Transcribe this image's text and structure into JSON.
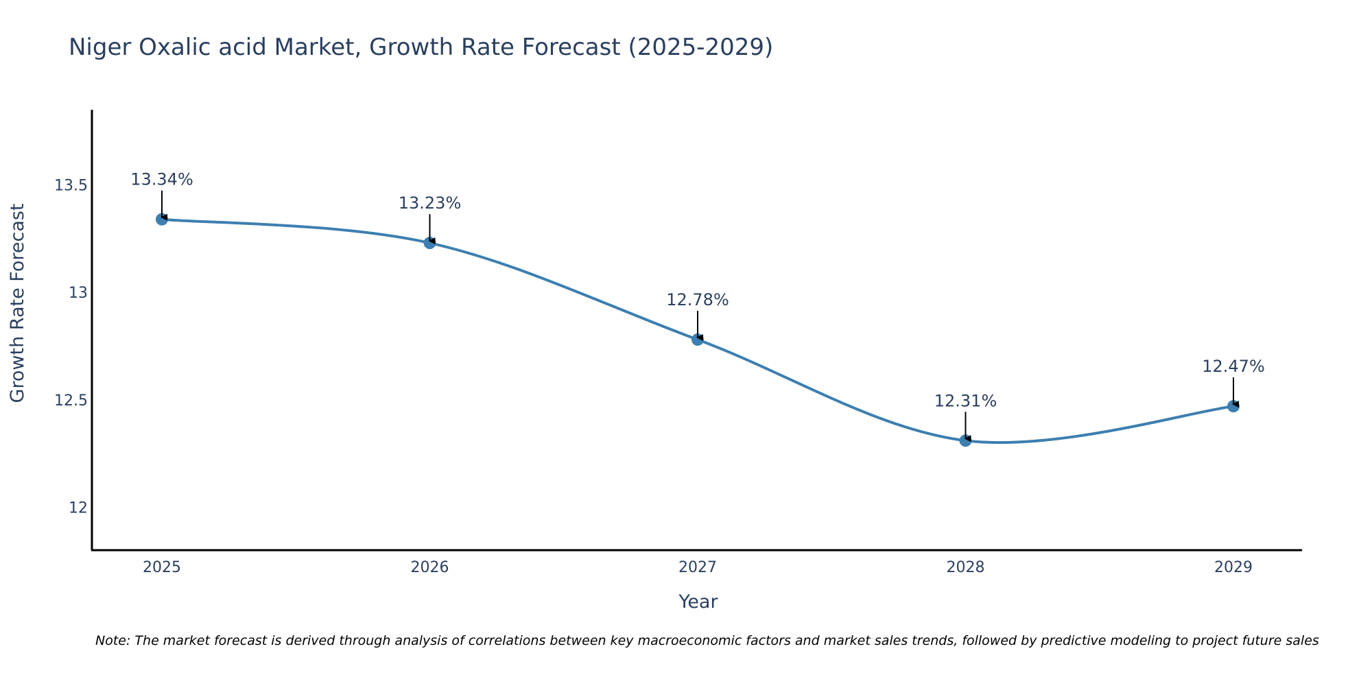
{
  "chart_data": {
    "type": "line",
    "title": "Niger Oxalic acid Market, Growth Rate Forecast (2025-2029)",
    "xlabel": "Year",
    "ylabel": "Growth Rate Forecast",
    "categories": [
      "2025",
      "2026",
      "2027",
      "2028",
      "2029"
    ],
    "values": [
      13.34,
      13.23,
      12.78,
      12.31,
      12.47
    ],
    "data_labels": [
      "13.34%",
      "13.23%",
      "12.78%",
      "12.31%",
      "12.47%"
    ],
    "yticks": [
      12,
      12.5,
      13,
      13.5
    ],
    "ytick_labels": [
      "12",
      "12.5",
      "13",
      "13.5"
    ],
    "ylim": [
      11.8,
      13.85
    ],
    "line_color": "#3d7fb0",
    "annotation_color": "#000000",
    "grid": false,
    "legend": "none",
    "note": "Note: The market forecast is derived through analysis of correlations between key macroeconomic factors and market sales trends, followed by predictive modeling to project future sales"
  }
}
